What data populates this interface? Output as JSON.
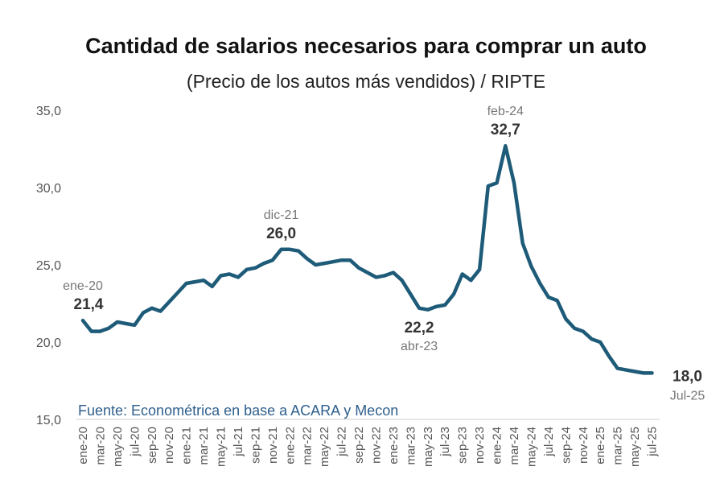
{
  "title": "Cantidad de salarios necesarios para comprar un auto",
  "subtitle": "(Precio de los autos más vendidos) / RIPTE",
  "source": "Fuente: Econométrica en base a ACARA y Mecon",
  "colors": {
    "line": "#1e5b78",
    "source": "#2e5f8c"
  },
  "chart_data": {
    "type": "line",
    "title": "Cantidad de salarios necesarios para comprar un auto",
    "subtitle": "(Precio de los autos más vendidos) / RIPTE",
    "ylim": [
      15,
      35
    ],
    "yticks": [
      "15,0",
      "20,0",
      "25,0",
      "30,0",
      "35,0"
    ],
    "ytick_values": [
      15,
      20,
      25,
      30,
      35
    ],
    "grid": false,
    "xtick_labels": [
      "ene-20",
      "mar-20",
      "may-20",
      "jul-20",
      "sep-20",
      "nov-20",
      "ene-21",
      "mar-21",
      "may-21",
      "jul-21",
      "sep-21",
      "nov-21",
      "ene-22",
      "mar-22",
      "may-22",
      "jul-22",
      "sep-22",
      "nov-22",
      "ene-23",
      "mar-23",
      "may-23",
      "jul-23",
      "sep-23",
      "nov-23",
      "ene-24",
      "mar-24",
      "may-24",
      "jul-24",
      "sep-24",
      "nov-24",
      "ene-25",
      "mar-25",
      "may-25",
      "jul-25"
    ],
    "x_start": "ene-20",
    "x_end": "jul-25",
    "values": [
      21.4,
      20.7,
      20.7,
      20.9,
      21.3,
      21.2,
      21.1,
      21.9,
      22.2,
      22.0,
      22.6,
      23.2,
      23.8,
      23.9,
      24.0,
      23.6,
      24.3,
      24.4,
      24.2,
      24.7,
      24.8,
      25.1,
      25.3,
      26.0,
      26.0,
      25.9,
      25.4,
      25.0,
      25.1,
      25.2,
      25.3,
      25.3,
      24.8,
      24.5,
      24.2,
      24.3,
      24.5,
      24.0,
      23.1,
      22.2,
      22.1,
      22.3,
      22.4,
      23.1,
      24.4,
      24.0,
      24.7,
      30.1,
      30.3,
      32.7,
      30.3,
      26.4,
      24.9,
      23.8,
      22.9,
      22.7,
      21.5,
      20.9,
      20.7,
      20.2,
      20.0,
      19.1,
      18.3,
      18.2,
      18.1,
      18.0,
      18.0
    ],
    "annotations": [
      {
        "date": "ene-20",
        "value_label": "21,4",
        "index": 0,
        "pos": "above"
      },
      {
        "date": "dic-21",
        "value_label": "26,0",
        "index": 23,
        "pos": "above"
      },
      {
        "date": "abr-23",
        "value_label": "22,2",
        "index": 39,
        "pos": "below"
      },
      {
        "date": "feb-24",
        "value_label": "32,7",
        "index": 49,
        "pos": "above"
      },
      {
        "date": "Jul-25",
        "value_label": "18,0",
        "index": 66,
        "pos": "right"
      }
    ]
  }
}
